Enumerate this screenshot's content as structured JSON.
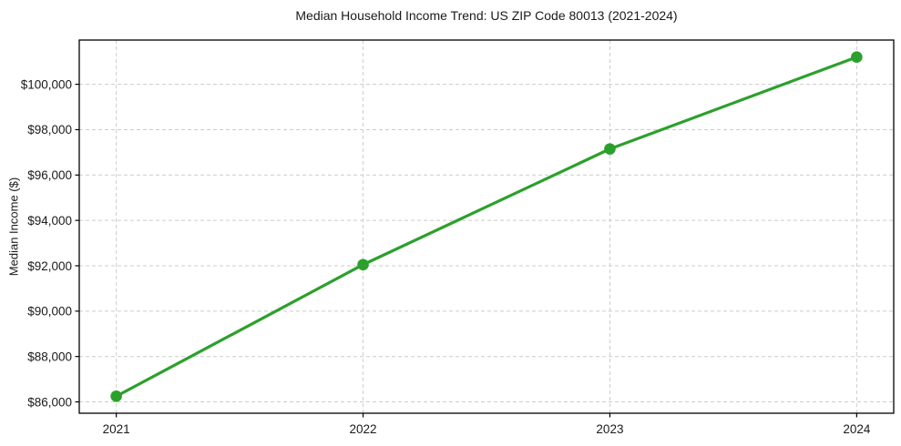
{
  "chart_data": {
    "type": "line",
    "title": "Median Household Income Trend: US ZIP Code 80013 (2021-2024)",
    "xlabel": "",
    "ylabel": "Median Income ($)",
    "x": [
      2021,
      2022,
      2023,
      2024
    ],
    "values": [
      86250,
      92050,
      97150,
      101200
    ],
    "xticks": [
      2021,
      2022,
      2023,
      2024
    ],
    "xtick_labels": [
      "2021",
      "2022",
      "2023",
      "2024"
    ],
    "yticks": [
      86000,
      88000,
      90000,
      92000,
      94000,
      96000,
      98000,
      100000
    ],
    "ytick_labels": [
      "$86,000",
      "$88,000",
      "$90,000",
      "$92,000",
      "$94,000",
      "$96,000",
      "$98,000",
      "$100,000"
    ],
    "xlim": [
      2020.85,
      2024.15
    ],
    "ylim": [
      85500,
      101950
    ],
    "grid": true,
    "grid_style": "dashed",
    "legend": "none",
    "line_color": "#2ca02c",
    "marker": "circle",
    "marker_color": "#2ca02c",
    "grid_color": "#cccccc",
    "axis_color": "#000000",
    "background_color": "#ffffff"
  }
}
